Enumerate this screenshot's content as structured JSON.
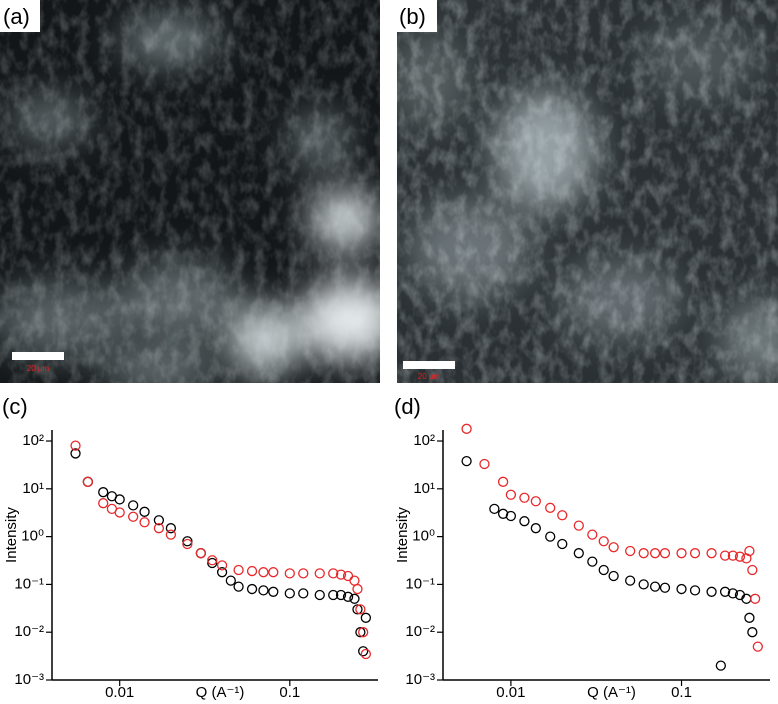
{
  "panels": [
    {
      "label": "(a)",
      "scale_bar": "20 μm"
    },
    {
      "label": "(b)",
      "scale_bar": "20 μm"
    }
  ],
  "chart_data": [
    {
      "type": "scatter",
      "label": "(c)",
      "xlabel": "Q (A⁻¹)",
      "ylabel": "Intensity",
      "log_x": true,
      "log_y": true,
      "xlim": [
        0.004,
        0.33
      ],
      "ylim": [
        0.001,
        170
      ],
      "xticks": [
        0.01,
        0.1
      ],
      "yticks": [
        {
          "value": 0.001,
          "label": "10⁻³"
        },
        {
          "value": 0.01,
          "label": "10⁻²"
        },
        {
          "value": 0.1,
          "label": "10⁻¹"
        },
        {
          "value": 1,
          "label": "10⁰"
        },
        {
          "value": 10,
          "label": "10¹"
        },
        {
          "value": 100,
          "label": "10²"
        }
      ],
      "series": [
        {
          "color": "#000000",
          "x": [
            0.0055,
            0.0065,
            0.008,
            0.009,
            0.01,
            0.012,
            0.014,
            0.017,
            0.02,
            0.025,
            0.03,
            0.035,
            0.04,
            0.045,
            0.05,
            0.06,
            0.07,
            0.08,
            0.1,
            0.12,
            0.15,
            0.18,
            0.2,
            0.22,
            0.24,
            0.25,
            0.26,
            0.27,
            0.28
          ],
          "values": [
            55,
            14,
            8.5,
            7,
            6,
            4.5,
            3.3,
            2.2,
            1.5,
            0.8,
            0.45,
            0.28,
            0.18,
            0.12,
            0.09,
            0.08,
            0.075,
            0.07,
            0.065,
            0.065,
            0.06,
            0.06,
            0.06,
            0.055,
            0.05,
            0.03,
            0.01,
            0.004,
            0.02
          ]
        },
        {
          "color": "#e8282b",
          "x": [
            0.0055,
            0.0065,
            0.008,
            0.009,
            0.01,
            0.012,
            0.014,
            0.017,
            0.02,
            0.025,
            0.03,
            0.035,
            0.04,
            0.05,
            0.06,
            0.07,
            0.08,
            0.1,
            0.12,
            0.15,
            0.18,
            0.2,
            0.22,
            0.24,
            0.25,
            0.26,
            0.27,
            0.28
          ],
          "values": [
            80,
            14,
            5,
            3.8,
            3.2,
            2.6,
            2,
            1.5,
            1.1,
            0.7,
            0.45,
            0.32,
            0.25,
            0.2,
            0.19,
            0.18,
            0.18,
            0.17,
            0.17,
            0.17,
            0.17,
            0.16,
            0.15,
            0.12,
            0.08,
            0.03,
            0.01,
            0.0035
          ]
        }
      ]
    },
    {
      "type": "scatter",
      "label": "(d)",
      "xlabel": "Q (A⁻¹)",
      "ylabel": "Intensity",
      "log_x": true,
      "log_y": true,
      "xlim": [
        0.004,
        0.33
      ],
      "ylim": [
        0.001,
        170
      ],
      "xticks": [
        0.01,
        0.1
      ],
      "yticks": [
        {
          "value": 0.001,
          "label": "10⁻³"
        },
        {
          "value": 0.01,
          "label": "10⁻²"
        },
        {
          "value": 0.1,
          "label": "10⁻¹"
        },
        {
          "value": 1,
          "label": "10⁰"
        },
        {
          "value": 10,
          "label": "10¹"
        },
        {
          "value": 100,
          "label": "10²"
        }
      ],
      "series": [
        {
          "color": "#000000",
          "x": [
            0.0055,
            0.008,
            0.009,
            0.01,
            0.012,
            0.014,
            0.017,
            0.02,
            0.025,
            0.03,
            0.035,
            0.04,
            0.05,
            0.06,
            0.07,
            0.08,
            0.1,
            0.12,
            0.15,
            0.18,
            0.2,
            0.22,
            0.24,
            0.25,
            0.26,
            0.17
          ],
          "values": [
            38,
            3.8,
            3,
            2.7,
            2.1,
            1.5,
            1,
            0.7,
            0.45,
            0.3,
            0.2,
            0.15,
            0.12,
            0.1,
            0.09,
            0.085,
            0.08,
            0.075,
            0.07,
            0.07,
            0.065,
            0.06,
            0.05,
            0.02,
            0.01,
            0.002
          ]
        },
        {
          "color": "#e8282b",
          "x": [
            0.0055,
            0.007,
            0.009,
            0.01,
            0.012,
            0.014,
            0.017,
            0.02,
            0.025,
            0.03,
            0.035,
            0.04,
            0.05,
            0.06,
            0.07,
            0.08,
            0.1,
            0.12,
            0.15,
            0.18,
            0.2,
            0.22,
            0.24,
            0.25,
            0.26,
            0.27,
            0.28
          ],
          "values": [
            180,
            33,
            14,
            7.5,
            6.5,
            5.5,
            4,
            2.8,
            1.7,
            1.1,
            0.8,
            0.6,
            0.5,
            0.45,
            0.45,
            0.45,
            0.45,
            0.45,
            0.45,
            0.4,
            0.4,
            0.38,
            0.35,
            0.5,
            0.2,
            0.05,
            0.005
          ]
        }
      ]
    }
  ]
}
